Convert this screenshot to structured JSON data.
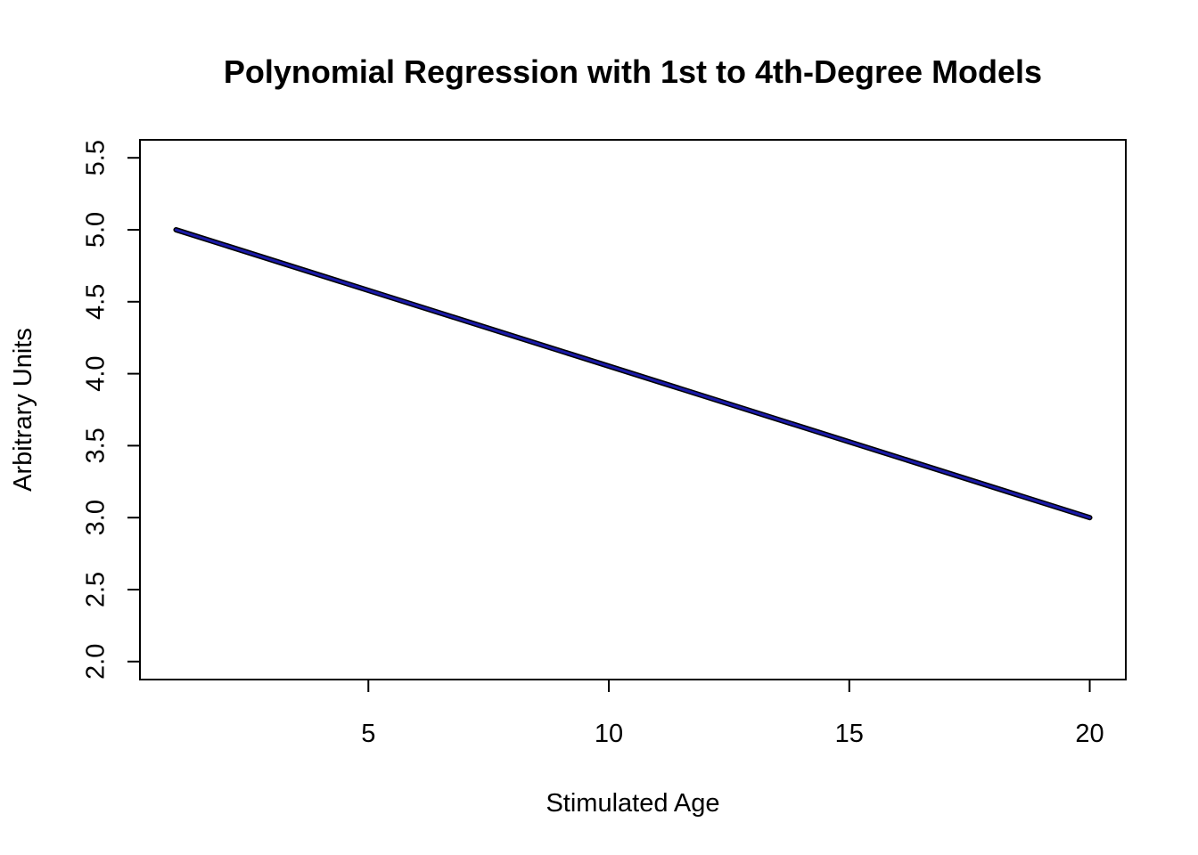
{
  "chart_data": {
    "type": "line",
    "title": "Polynomial Regression with 1st to 4th-Degree Models",
    "xlabel": "Stimulated Age",
    "ylabel": "Arbitrary Units",
    "xlim": [
      0.25,
      20.75
    ],
    "ylim": [
      1.875,
      5.625
    ],
    "x_ticks": [
      5,
      10,
      15,
      20
    ],
    "y_ticks": [
      2.0,
      2.5,
      3.0,
      3.5,
      4.0,
      4.5,
      5.0,
      5.5
    ],
    "x_tick_labels": [
      "5",
      "10",
      "15",
      "20"
    ],
    "y_tick_labels": [
      "2.0",
      "2.5",
      "3.0",
      "3.5",
      "4.0",
      "4.5",
      "5.0",
      "5.5"
    ],
    "grid": false,
    "legend": false,
    "series": [
      {
        "color": "#1a1aa6",
        "outline_color": "#000000",
        "x": [
          1,
          20
        ],
        "y": [
          5.0,
          3.0
        ]
      }
    ]
  }
}
